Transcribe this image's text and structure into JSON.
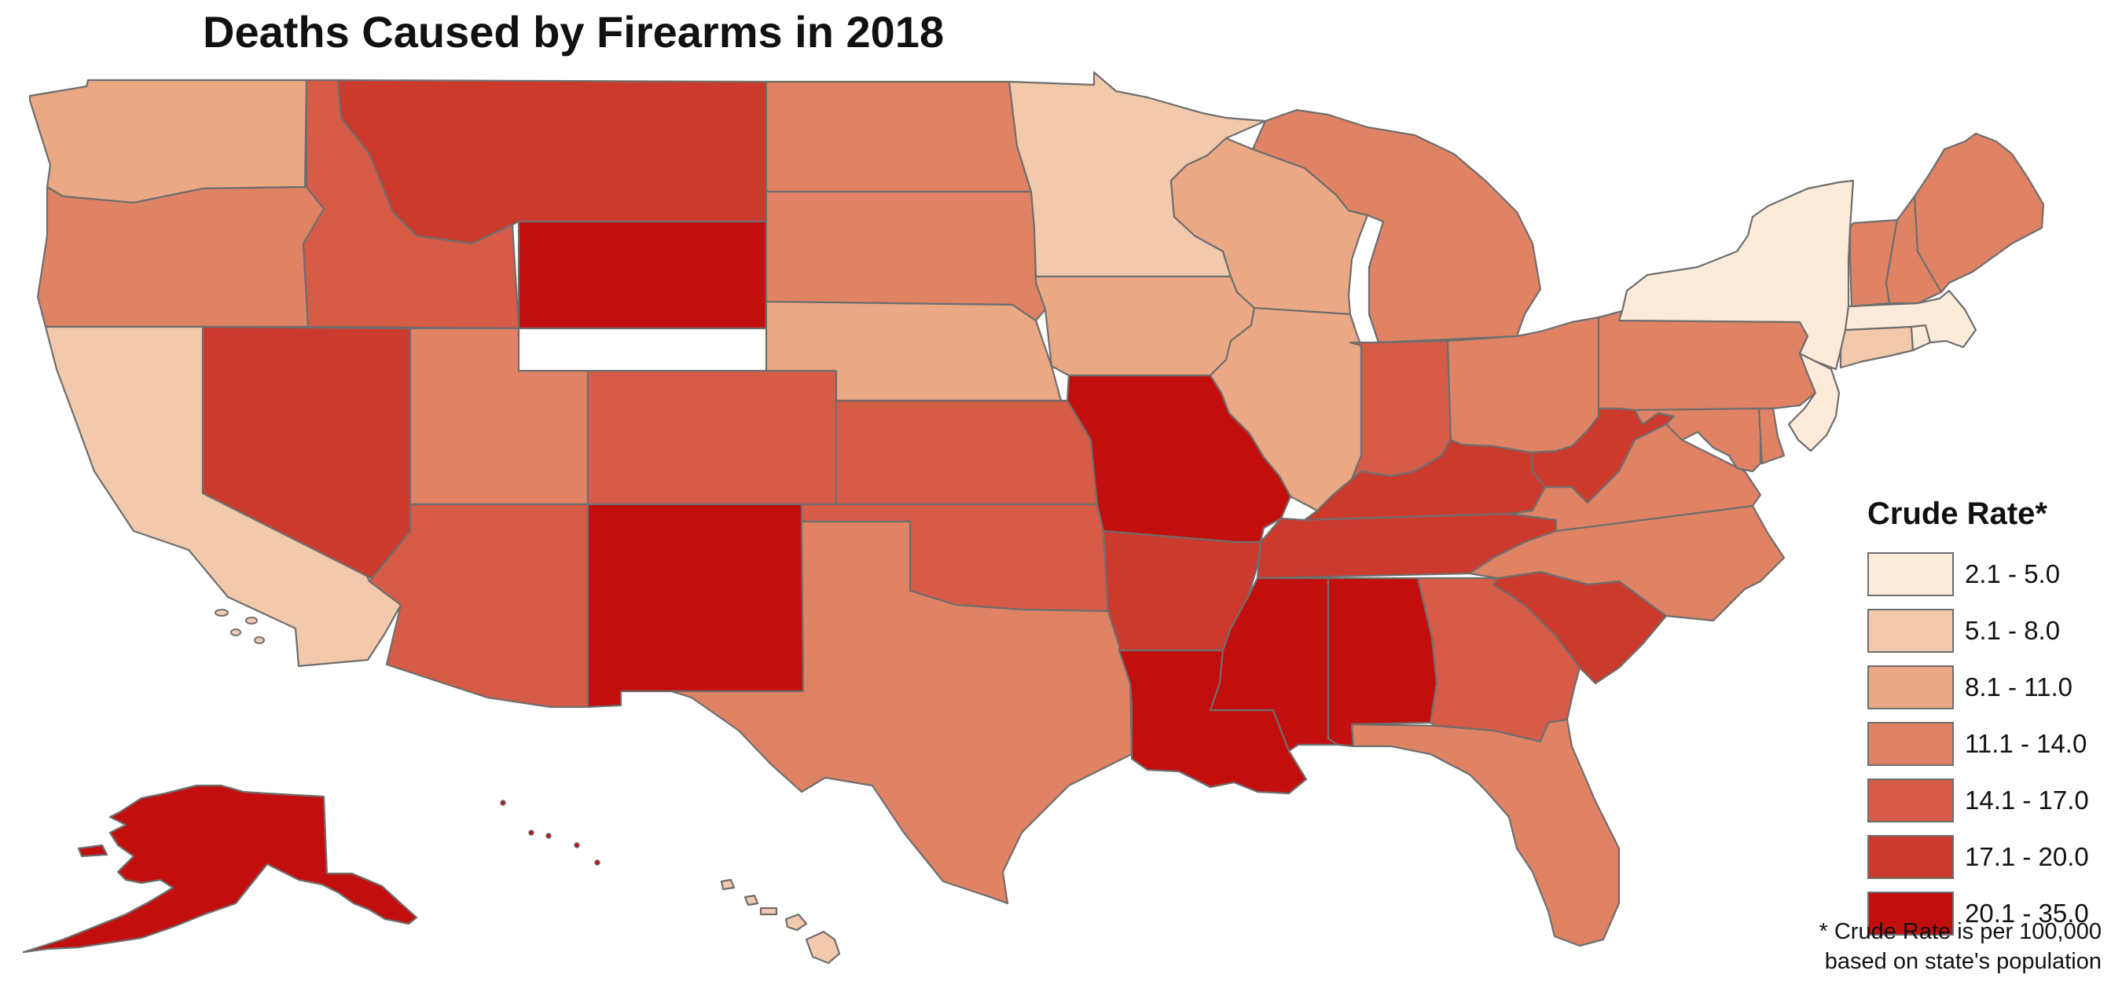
{
  "title": "Deaths Caused by Firearms in 2018",
  "legend": {
    "title": "Crude Rate*",
    "bins": [
      {
        "label": "2.1 - 5.0",
        "color": "#fdebd9"
      },
      {
        "label": "5.1 - 8.0",
        "color": "#f3c9ab"
      },
      {
        "label": "8.1 - 11.0",
        "color": "#eba885"
      },
      {
        "label": "11.1 - 14.0",
        "color": "#e08365"
      },
      {
        "label": "14.1 - 17.0",
        "color": "#d65c48"
      },
      {
        "label": "17.1 - 20.0",
        "color": "#cc3a2e"
      },
      {
        "label": "20.1 - 35.0",
        "color": "#c20f0e"
      }
    ]
  },
  "footnote": {
    "line1": "* Crude Rate is per 100,000",
    "line2": "based on state's population"
  },
  "states": [
    {
      "id": "WA",
      "name": "Washington",
      "bin": 2
    },
    {
      "id": "OR",
      "name": "Oregon",
      "bin": 3
    },
    {
      "id": "CA",
      "name": "California",
      "bin": 1
    },
    {
      "id": "ID",
      "name": "Idaho",
      "bin": 4
    },
    {
      "id": "NV",
      "name": "Nevada",
      "bin": 5
    },
    {
      "id": "MT",
      "name": "Montana",
      "bin": 5
    },
    {
      "id": "WY",
      "name": "Wyoming",
      "bin": 6
    },
    {
      "id": "UT",
      "name": "Utah",
      "bin": 3
    },
    {
      "id": "AZ",
      "name": "Arizona",
      "bin": 4
    },
    {
      "id": "CO",
      "name": "Colorado",
      "bin": 4
    },
    {
      "id": "NM",
      "name": "New Mexico",
      "bin": 6
    },
    {
      "id": "ND",
      "name": "North Dakota",
      "bin": 3
    },
    {
      "id": "SD",
      "name": "South Dakota",
      "bin": 3
    },
    {
      "id": "NE",
      "name": "Nebraska",
      "bin": 2
    },
    {
      "id": "KS",
      "name": "Kansas",
      "bin": 4
    },
    {
      "id": "OK",
      "name": "Oklahoma",
      "bin": 4
    },
    {
      "id": "TX",
      "name": "Texas",
      "bin": 3
    },
    {
      "id": "MN",
      "name": "Minnesota",
      "bin": 1
    },
    {
      "id": "IA",
      "name": "Iowa",
      "bin": 2
    },
    {
      "id": "MO",
      "name": "Missouri",
      "bin": 6
    },
    {
      "id": "AR",
      "name": "Arkansas",
      "bin": 5
    },
    {
      "id": "LA",
      "name": "Louisiana",
      "bin": 6
    },
    {
      "id": "WI",
      "name": "Wisconsin",
      "bin": 2
    },
    {
      "id": "IL",
      "name": "Illinois",
      "bin": 2
    },
    {
      "id": "MI",
      "name": "Michigan",
      "bin": 3
    },
    {
      "id": "IN",
      "name": "Indiana",
      "bin": 4
    },
    {
      "id": "OH",
      "name": "Ohio",
      "bin": 3
    },
    {
      "id": "KY",
      "name": "Kentucky",
      "bin": 5
    },
    {
      "id": "TN",
      "name": "Tennessee",
      "bin": 5
    },
    {
      "id": "MS",
      "name": "Mississippi",
      "bin": 6
    },
    {
      "id": "AL",
      "name": "Alabama",
      "bin": 6
    },
    {
      "id": "GA",
      "name": "Georgia",
      "bin": 4
    },
    {
      "id": "FL",
      "name": "Florida",
      "bin": 3
    },
    {
      "id": "SC",
      "name": "South Carolina",
      "bin": 5
    },
    {
      "id": "NC",
      "name": "North Carolina",
      "bin": 3
    },
    {
      "id": "VA",
      "name": "Virginia",
      "bin": 3
    },
    {
      "id": "WV",
      "name": "West Virginia",
      "bin": 5
    },
    {
      "id": "MD",
      "name": "Maryland",
      "bin": 3
    },
    {
      "id": "DE",
      "name": "Delaware",
      "bin": 3
    },
    {
      "id": "PA",
      "name": "Pennsylvania",
      "bin": 3
    },
    {
      "id": "NJ",
      "name": "New Jersey",
      "bin": 0
    },
    {
      "id": "NY",
      "name": "New York",
      "bin": 0
    },
    {
      "id": "CT",
      "name": "Connecticut",
      "bin": 1
    },
    {
      "id": "RI",
      "name": "Rhode Island",
      "bin": 0
    },
    {
      "id": "MA",
      "name": "Massachusetts",
      "bin": 0
    },
    {
      "id": "VT",
      "name": "Vermont",
      "bin": 3
    },
    {
      "id": "NH",
      "name": "New Hampshire",
      "bin": 3
    },
    {
      "id": "ME",
      "name": "Maine",
      "bin": 3
    },
    {
      "id": "AK",
      "name": "Alaska",
      "bin": 6
    },
    {
      "id": "HI",
      "name": "Hawaii",
      "bin": 1
    }
  ]
}
